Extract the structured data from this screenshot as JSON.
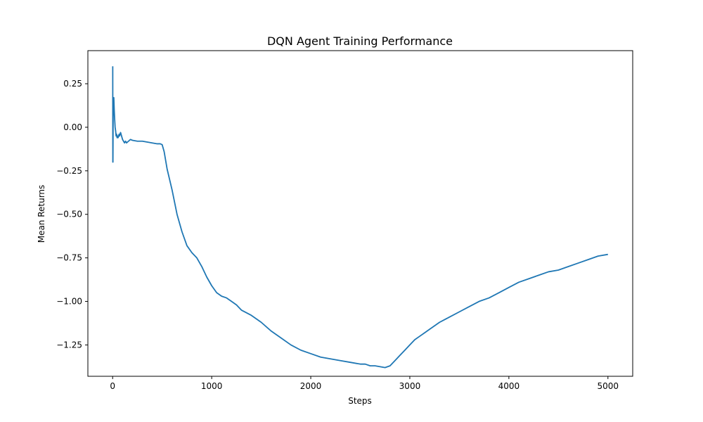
{
  "chart_data": {
    "type": "line",
    "title": "DQN Agent Training Performance",
    "xlabel": "Steps",
    "ylabel": "Mean Returns",
    "xlim": [
      -250,
      5250
    ],
    "ylim": [
      -1.43,
      0.44
    ],
    "xticks": [
      0,
      1000,
      2000,
      3000,
      4000,
      5000
    ],
    "yticks": [
      0.25,
      0.0,
      -0.25,
      -0.5,
      -0.75,
      -1.0,
      -1.25
    ],
    "xtick_labels": [
      "0",
      "1000",
      "2000",
      "3000",
      "4000",
      "5000"
    ],
    "ytick_labels": [
      "0.25",
      "0.00",
      "−0.25",
      "−0.50",
      "−0.75",
      "−1.00",
      "−1.25"
    ],
    "grid": false,
    "legend": "none",
    "line_color": "#1f77b4",
    "series": [
      {
        "x": [
          1,
          2,
          3,
          5,
          8,
          12,
          16,
          20,
          25,
          30,
          35,
          40,
          45,
          50,
          55,
          60,
          65,
          70,
          80,
          90,
          100,
          110,
          120,
          130,
          140,
          150,
          160,
          180,
          200,
          250,
          300,
          350,
          400,
          450,
          480,
          500,
          520,
          550,
          600,
          650,
          700,
          750,
          800,
          850,
          900,
          950,
          1000,
          1050,
          1100,
          1150,
          1200,
          1250,
          1300,
          1400,
          1500,
          1600,
          1700,
          1800,
          1900,
          2000,
          2100,
          2200,
          2300,
          2400,
          2500,
          2550,
          2600,
          2650,
          2700,
          2750,
          2800,
          2850,
          2900,
          2950,
          3000,
          3050,
          3100,
          3150,
          3200,
          3300,
          3400,
          3500,
          3600,
          3700,
          3800,
          3900,
          4000,
          4100,
          4200,
          4300,
          4400,
          4500,
          4600,
          4700,
          4800,
          4900,
          5000
        ],
        "y": [
          0.35,
          -0.2,
          -0.2,
          0.05,
          0.16,
          0.17,
          0.1,
          0.05,
          0.0,
          -0.02,
          -0.05,
          -0.04,
          -0.06,
          -0.05,
          -0.06,
          -0.05,
          -0.04,
          -0.05,
          -0.03,
          -0.05,
          -0.07,
          -0.08,
          -0.09,
          -0.08,
          -0.09,
          -0.085,
          -0.08,
          -0.07,
          -0.075,
          -0.08,
          -0.08,
          -0.085,
          -0.09,
          -0.095,
          -0.095,
          -0.1,
          -0.14,
          -0.24,
          -0.36,
          -0.5,
          -0.6,
          -0.68,
          -0.72,
          -0.75,
          -0.8,
          -0.86,
          -0.91,
          -0.95,
          -0.97,
          -0.98,
          -1.0,
          -1.02,
          -1.05,
          -1.08,
          -1.12,
          -1.17,
          -1.21,
          -1.25,
          -1.28,
          -1.3,
          -1.32,
          -1.33,
          -1.34,
          -1.35,
          -1.36,
          -1.36,
          -1.37,
          -1.37,
          -1.375,
          -1.38,
          -1.37,
          -1.34,
          -1.31,
          -1.28,
          -1.25,
          -1.22,
          -1.2,
          -1.18,
          -1.16,
          -1.12,
          -1.09,
          -1.06,
          -1.03,
          -1.0,
          -0.98,
          -0.95,
          -0.92,
          -0.89,
          -0.87,
          -0.85,
          -0.83,
          -0.82,
          -0.8,
          -0.78,
          -0.76,
          -0.74,
          -0.73
        ]
      }
    ]
  }
}
